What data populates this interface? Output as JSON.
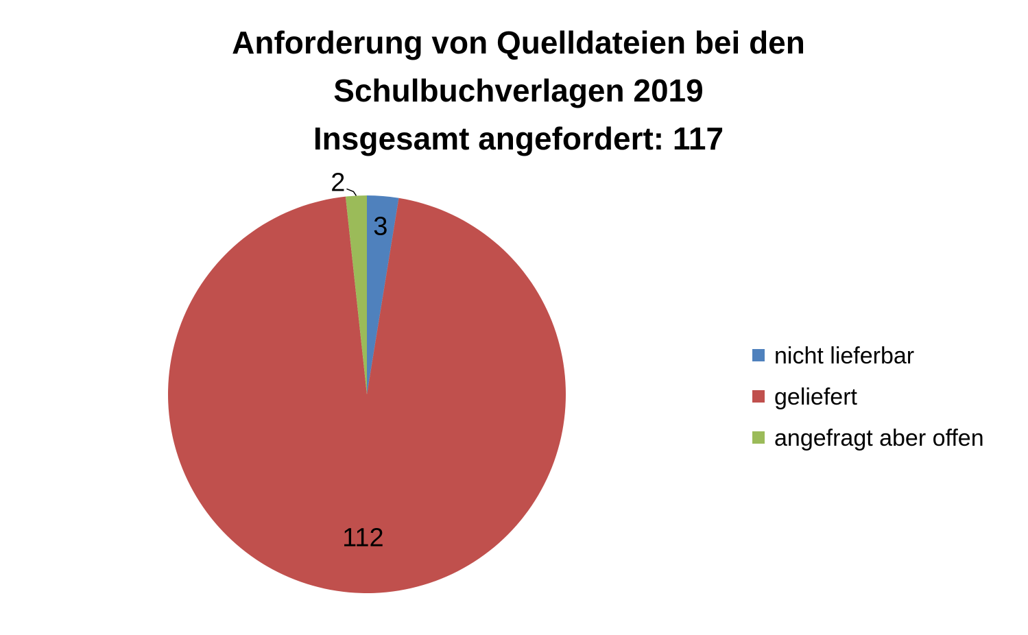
{
  "chart_data": {
    "type": "pie",
    "title": [
      "Anforderung von Quelldateien bei den",
      "Schulbuchverlagen 2019",
      "Insgesamt angefordert: 117"
    ],
    "categories": [
      "nicht lieferbar",
      "geliefert",
      "angefragt aber offen"
    ],
    "values": [
      3,
      112,
      2
    ],
    "data_labels": [
      "3",
      "112",
      "2"
    ],
    "colors": [
      "#4F81BD",
      "#C0504D",
      "#9BBB59"
    ],
    "legend_position": "right",
    "start_angle": "12 o'clock, clockwise"
  }
}
